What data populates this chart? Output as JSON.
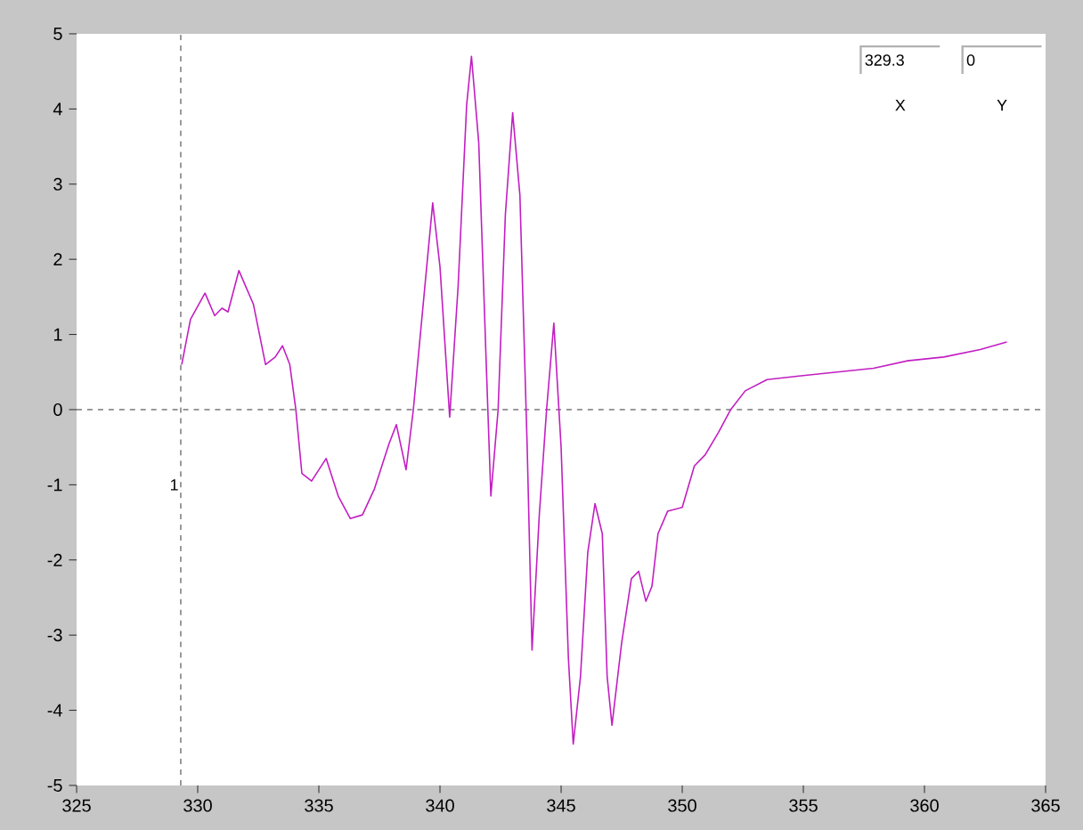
{
  "chart_data": {
    "type": "line",
    "x": [
      329.34,
      329.7,
      330.3,
      330.7,
      331.0,
      331.25,
      331.7,
      332.3,
      332.8,
      333.2,
      333.5,
      333.8,
      334.05,
      334.3,
      334.7,
      335.3,
      335.8,
      336.3,
      336.8,
      337.3,
      337.9,
      338.2,
      338.4,
      338.6,
      338.9,
      339.35,
      339.7,
      340.0,
      340.4,
      340.75,
      341.1,
      341.3,
      341.6,
      341.9,
      342.1,
      342.4,
      342.7,
      343.0,
      343.3,
      343.6,
      343.8,
      344.1,
      344.4,
      344.7,
      345.0,
      345.3,
      345.5,
      345.8,
      346.1,
      346.4,
      346.7,
      346.9,
      347.1,
      347.5,
      347.9,
      348.2,
      348.5,
      348.75,
      349.0,
      349.4,
      350.0,
      350.5,
      350.95,
      351.5,
      352.0,
      352.6,
      353.5,
      354.9,
      356.4,
      357.9,
      359.3,
      360.8,
      362.3,
      363.4
    ],
    "values": [
      0.6,
      1.2,
      1.55,
      1.25,
      1.35,
      1.3,
      1.85,
      1.4,
      0.6,
      0.7,
      0.85,
      0.6,
      0,
      -0.85,
      -0.95,
      -0.65,
      -1.15,
      -1.45,
      -1.4,
      -1.05,
      -0.45,
      -0.2,
      -0.5,
      -0.8,
      0,
      1.55,
      2.75,
      1.9,
      -0.1,
      1.65,
      4.05,
      4.7,
      3.55,
      0.7,
      -1.15,
      0,
      2.6,
      3.95,
      2.85,
      -0.5,
      -3.2,
      -1.4,
      0,
      1.15,
      -0.5,
      -3.3,
      -4.45,
      -3.55,
      -1.9,
      -1.25,
      -1.65,
      -3.55,
      -4.2,
      -3.1,
      -2.25,
      -2.15,
      -2.55,
      -2.35,
      -1.65,
      -1.35,
      -1.3,
      -0.75,
      -0.6,
      -0.3,
      0,
      0.25,
      0.4,
      0.45,
      0.5,
      0.55,
      0.65,
      0.7,
      0.8,
      0.9
    ],
    "color": "#c21ec2",
    "xlim": [
      325,
      365
    ],
    "xticks": [
      325,
      330,
      335,
      340,
      345,
      350,
      355,
      360,
      365
    ],
    "ylim": [
      -5,
      5
    ],
    "yticks": [
      -5,
      -4,
      -3,
      -2,
      -1,
      0,
      1,
      2,
      3,
      4,
      5
    ],
    "grid": false,
    "marker": "none",
    "line_style": "solid",
    "ref_lines": [
      {
        "axis": "x",
        "value": 329.3,
        "line_style": "dashed",
        "color": "#000000"
      },
      {
        "axis": "y",
        "value": 0,
        "line_style": "dashed",
        "color": "#000000"
      }
    ],
    "annotations": [
      "329.3",
      "0",
      "X",
      "Y",
      "1"
    ]
  }
}
